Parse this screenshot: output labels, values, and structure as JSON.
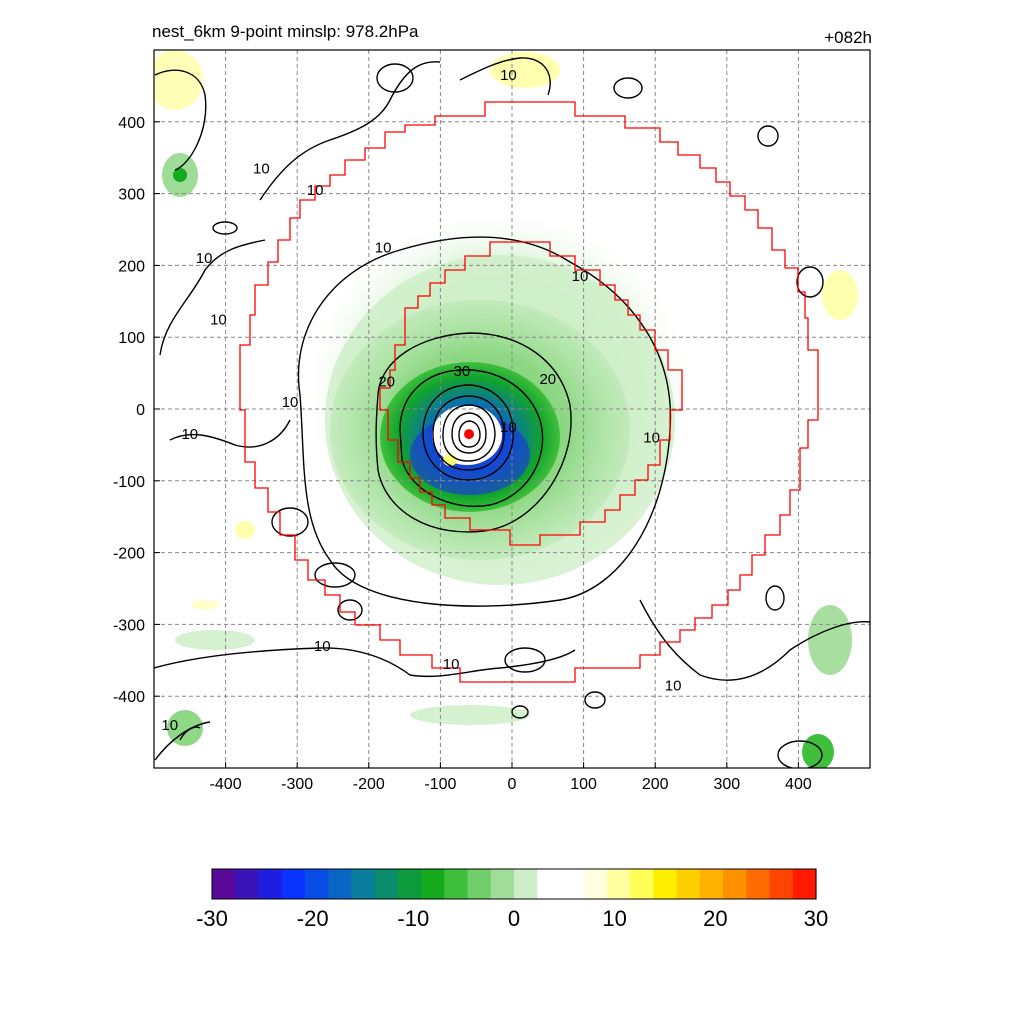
{
  "chart_data": {
    "type": "heatmap",
    "title_left": "nest_6km  9-point minslp: 978.2hPa",
    "title_right": "+082h",
    "xlim": [
      -500,
      500
    ],
    "ylim": [
      -500,
      500
    ],
    "x_ticks": [
      -400,
      -300,
      -200,
      -100,
      0,
      100,
      200,
      300,
      400
    ],
    "y_ticks": [
      -400,
      -300,
      -200,
      -100,
      0,
      100,
      200,
      300,
      400
    ],
    "grid": true,
    "colorbar": {
      "range": [
        -30,
        30
      ],
      "tick_values": [
        -30,
        -20,
        -10,
        0,
        10,
        20,
        30
      ],
      "colors_low_to_high": [
        "#5a0a9a",
        "#3a14b8",
        "#1e1ee0",
        "#0b33ff",
        "#0a4de6",
        "#0a66c4",
        "#0a7d9c",
        "#0b8c6e",
        "#0c9a3c",
        "#14aa1e",
        "#3fbf3c",
        "#70cf6a",
        "#a0dd98",
        "#cdeec6",
        "#ffffff",
        "#ffffff",
        "#ffffe0",
        "#ffffa0",
        "#ffff55",
        "#ffee00",
        "#ffd000",
        "#ffb000",
        "#ff9000",
        "#ff6c00",
        "#ff4400",
        "#ff1a00"
      ]
    },
    "center": {
      "x": -60,
      "y": -35,
      "color": "#ff0000"
    },
    "contour_labels": [
      {
        "text": "10",
        "x": -5,
        "y": 465
      },
      {
        "text": "10",
        "x": -350,
        "y": 335
      },
      {
        "text": "10",
        "x": -275,
        "y": 305
      },
      {
        "text": "10",
        "x": -430,
        "y": 210
      },
      {
        "text": "10",
        "x": -410,
        "y": 125
      },
      {
        "text": "10",
        "x": -180,
        "y": 225
      },
      {
        "text": "10",
        "x": 95,
        "y": 185
      },
      {
        "text": "10",
        "x": -310,
        "y": 10
      },
      {
        "text": "10",
        "x": -450,
        "y": -35
      },
      {
        "text": "10",
        "x": 195,
        "y": -40
      },
      {
        "text": "30",
        "x": -70,
        "y": 53
      },
      {
        "text": "20",
        "x": -175,
        "y": 38
      },
      {
        "text": "20",
        "x": 50,
        "y": 42
      },
      {
        "text": "10",
        "x": -5,
        "y": -25
      },
      {
        "text": "10",
        "x": -265,
        "y": -330
      },
      {
        "text": "10",
        "x": -85,
        "y": -355
      },
      {
        "text": "10",
        "x": 225,
        "y": -385
      },
      {
        "text": "10",
        "x": -478,
        "y": -440
      }
    ]
  }
}
